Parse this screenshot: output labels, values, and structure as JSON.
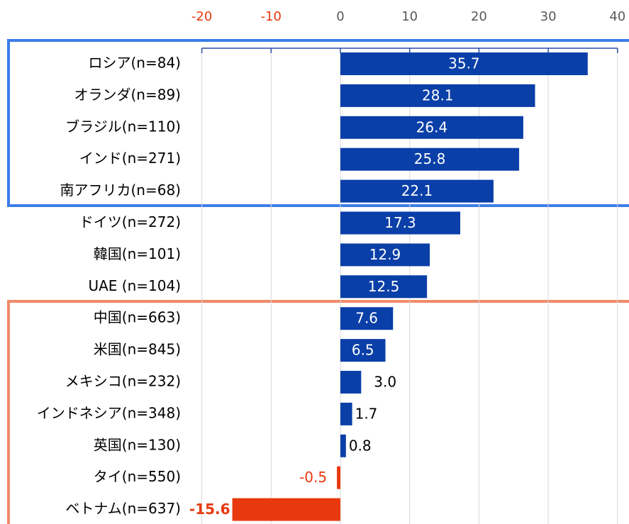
{
  "chart_data": {
    "type": "barh",
    "categories": [
      "ロシア(n=84)",
      "オランダ(n=89)",
      "ブラジル(n=110)",
      "インド(n=271)",
      "南アフリカ(n=68)",
      "ドイツ(n=272)",
      "韓国(n=101)",
      "UAE (n=104)",
      "中国(n=663)",
      "米国(n=845)",
      "メキシコ(n=232)",
      "インドネシア(n=348)",
      "英国(n=130)",
      "タイ(n=550)",
      "ベトナム(n=637)"
    ],
    "values": [
      35.7,
      28.1,
      26.4,
      25.8,
      22.1,
      17.3,
      12.9,
      12.5,
      7.6,
      6.5,
      3.0,
      1.7,
      0.8,
      -0.5,
      -15.6
    ],
    "value_labels": [
      "35.7",
      "28.1",
      "26.4",
      "25.8",
      "22.1",
      "17.3",
      "12.9",
      "12.5",
      "7.6",
      "6.5",
      "3.0",
      "1.7",
      "0.8",
      "-0.5",
      "-15.6"
    ],
    "color": "#0a3fa8",
    "negative_color": "#e8380d",
    "xlim": [
      -20,
      40
    ],
    "xticks": [
      -20,
      -10,
      0,
      10,
      20,
      30,
      40
    ],
    "grid": true
  }
}
